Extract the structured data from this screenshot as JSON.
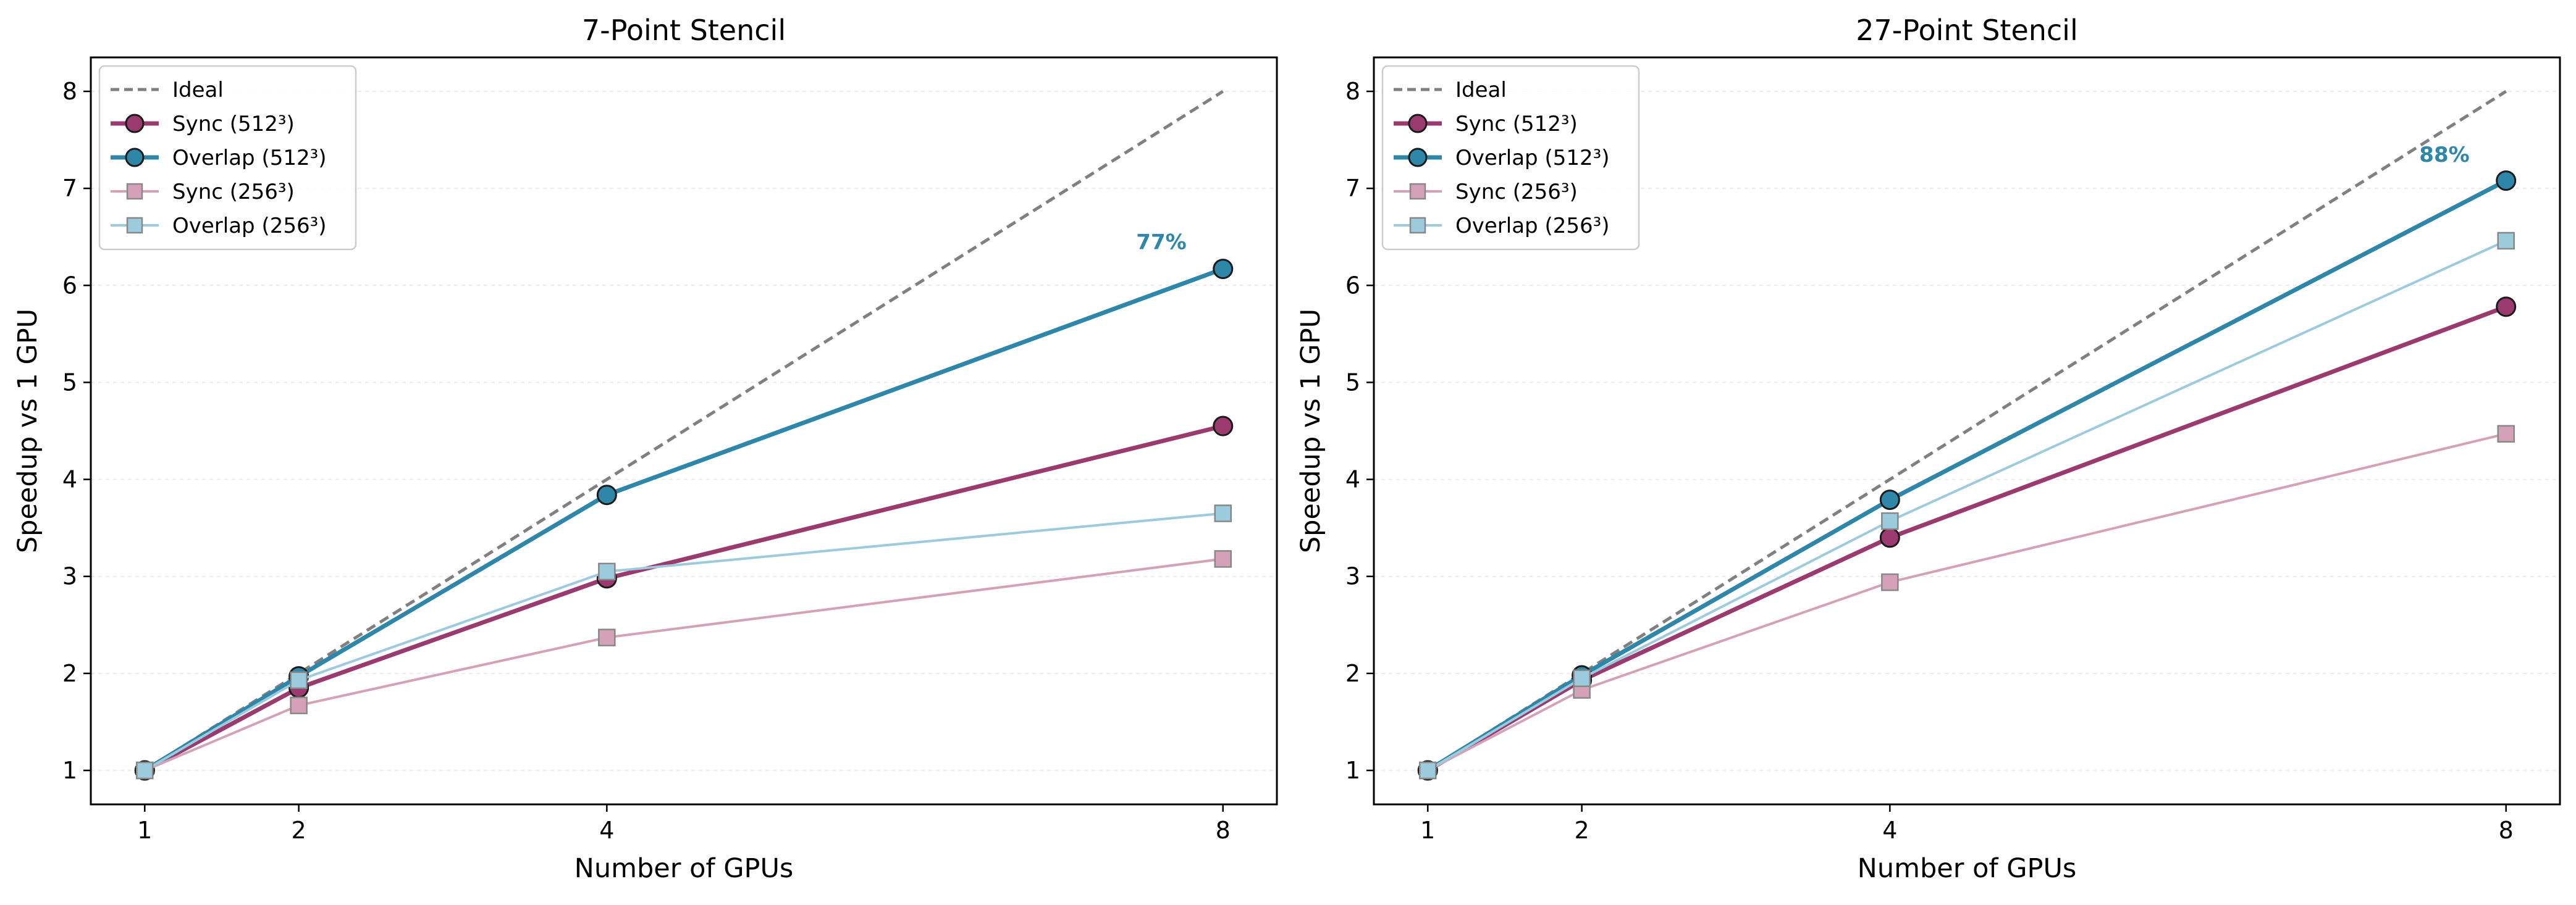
{
  "chart_data": [
    {
      "type": "line",
      "title": "7-Point Stencil",
      "xlabel": "Number of GPUs",
      "ylabel": "Speedup vs 1 GPU",
      "xlim": [
        0.65,
        8.35
      ],
      "ylim": [
        0.65,
        8.35
      ],
      "xticks": [
        1,
        2,
        4,
        8
      ],
      "yticks": [
        1,
        2,
        3,
        4,
        5,
        6,
        7,
        8
      ],
      "grid": "horizontal",
      "legend": "top-left",
      "x": [
        1,
        2,
        4,
        8
      ],
      "series": [
        {
          "name": "Ideal",
          "values": [
            1,
            2,
            4,
            8
          ],
          "color": "#808080",
          "style": "dashed",
          "marker": "none"
        },
        {
          "name": "Sync (512³)",
          "values": [
            1,
            1.85,
            2.98,
            4.55
          ],
          "color": "#9b3a6e",
          "style": "solid",
          "marker": "circle",
          "weight": "bold"
        },
        {
          "name": "Overlap (512³)",
          "values": [
            1,
            1.97,
            3.84,
            6.17
          ],
          "color": "#2e86a8",
          "style": "solid",
          "marker": "circle",
          "weight": "bold"
        },
        {
          "name": "Sync (256³)",
          "values": [
            1,
            1.67,
            2.37,
            3.18
          ],
          "color": "#d4a1b9",
          "style": "solid",
          "marker": "square",
          "weight": "light"
        },
        {
          "name": "Overlap (256³)",
          "values": [
            1,
            1.93,
            3.05,
            3.65
          ],
          "color": "#9ccbdd",
          "style": "solid",
          "marker": "square",
          "weight": "light"
        }
      ],
      "annotation": {
        "text": "77%",
        "x": 7.6,
        "y": 6.45,
        "color": "#2e86a8"
      }
    },
    {
      "type": "line",
      "title": "27-Point Stencil",
      "xlabel": "Number of GPUs",
      "ylabel": "Speedup vs 1 GPU",
      "xlim": [
        0.65,
        8.35
      ],
      "ylim": [
        0.65,
        8.35
      ],
      "xticks": [
        1,
        2,
        4,
        8
      ],
      "yticks": [
        1,
        2,
        3,
        4,
        5,
        6,
        7,
        8
      ],
      "grid": "horizontal",
      "legend": "top-left",
      "x": [
        1,
        2,
        4,
        8
      ],
      "series": [
        {
          "name": "Ideal",
          "values": [
            1,
            2,
            4,
            8
          ],
          "color": "#808080",
          "style": "dashed",
          "marker": "none"
        },
        {
          "name": "Sync (512³)",
          "values": [
            1,
            1.93,
            3.4,
            5.78
          ],
          "color": "#9b3a6e",
          "style": "solid",
          "marker": "circle",
          "weight": "bold"
        },
        {
          "name": "Overlap (512³)",
          "values": [
            1,
            1.98,
            3.79,
            7.08
          ],
          "color": "#2e86a8",
          "style": "solid",
          "marker": "circle",
          "weight": "bold"
        },
        {
          "name": "Sync (256³)",
          "values": [
            1,
            1.83,
            2.94,
            4.47
          ],
          "color": "#d4a1b9",
          "style": "solid",
          "marker": "square",
          "weight": "light"
        },
        {
          "name": "Overlap (256³)",
          "values": [
            1,
            1.95,
            3.57,
            6.46
          ],
          "color": "#9ccbdd",
          "style": "solid",
          "marker": "square",
          "weight": "light"
        }
      ],
      "annotation": {
        "text": "88%",
        "x": 7.6,
        "y": 7.35,
        "color": "#2e86a8"
      }
    }
  ]
}
